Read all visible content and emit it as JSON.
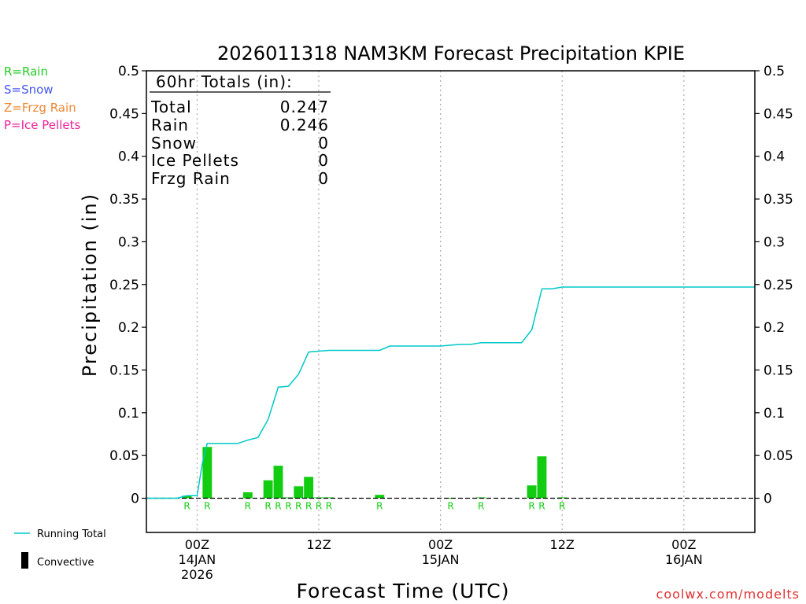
{
  "chart_data": {
    "type": "bar",
    "title": "2026011318 NAM3KM Forecast Precipitation KPIE",
    "xlabel": "Forecast Time (UTC)",
    "ylabel": "Precipitation (in)",
    "ylim": [
      -0.04,
      0.5
    ],
    "y_ticks": [
      0,
      0.05,
      0.1,
      0.15,
      0.2,
      0.25,
      0.3,
      0.35,
      0.4,
      0.45,
      0.5
    ],
    "y_tick_labels": [
      "0",
      "0.05",
      "0.1",
      "0.15",
      "0.2",
      "0.25",
      "0.3",
      "0.35",
      "0.4",
      "0.45",
      "0.5"
    ],
    "xlim_hours": [
      -5,
      55
    ],
    "x_ticks": [
      {
        "hour": 0,
        "labels": [
          "00Z",
          "14JAN",
          "2026"
        ]
      },
      {
        "hour": 12,
        "labels": [
          "12Z"
        ]
      },
      {
        "hour": 24,
        "labels": [
          "00Z",
          "15JAN"
        ]
      },
      {
        "hour": 36,
        "labels": [
          "12Z"
        ]
      },
      {
        "hour": 48,
        "labels": [
          "00Z",
          "16JAN"
        ]
      }
    ],
    "legend_types": [
      {
        "label": "R=Rain",
        "color": "#22cc22"
      },
      {
        "label": "S=Snow",
        "color": "#4455ee"
      },
      {
        "label": "Z=Frzg Rain",
        "color": "#ee8833"
      },
      {
        "label": "P=Ice Pellets",
        "color": "#ee2299"
      }
    ],
    "legend_series": [
      {
        "label": "Running Total",
        "color": "#00c8c8"
      },
      {
        "label": "Convective",
        "color": "#000000"
      }
    ],
    "totals": {
      "header": "60hr Totals (in):",
      "rows": [
        {
          "label": "Total",
          "value": "0.247"
        },
        {
          "label": "Rain",
          "value": "0.246"
        },
        {
          "label": "Snow",
          "value": "0"
        },
        {
          "label": "Ice Pellets",
          "value": "0"
        },
        {
          "label": "Frzg Rain",
          "value": "0"
        }
      ]
    },
    "bars": [
      {
        "hour": -1,
        "value": 0.003,
        "type": "R"
      },
      {
        "hour": 1,
        "value": 0.06,
        "type": "R"
      },
      {
        "hour": 5,
        "value": 0.007,
        "type": "R"
      },
      {
        "hour": 7,
        "value": 0.021,
        "type": "R"
      },
      {
        "hour": 8,
        "value": 0.038,
        "type": "R"
      },
      {
        "hour": 9,
        "value": 0.001,
        "type": "R"
      },
      {
        "hour": 10,
        "value": 0.014,
        "type": "R"
      },
      {
        "hour": 11,
        "value": 0.025,
        "type": "R"
      },
      {
        "hour": 12,
        "value": 0.001,
        "type": "R"
      },
      {
        "hour": 13,
        "value": 0.001,
        "type": "R"
      },
      {
        "hour": 18,
        "value": 0.004,
        "type": "R"
      },
      {
        "hour": 25,
        "value": 0.0005,
        "type": "R"
      },
      {
        "hour": 28,
        "value": 0.001,
        "type": "R"
      },
      {
        "hour": 33,
        "value": 0.015,
        "type": "R"
      },
      {
        "hour": 34,
        "value": 0.049,
        "type": "R"
      },
      {
        "hour": 36,
        "value": 0.001,
        "type": "R"
      }
    ],
    "running_total": {
      "name": "Running Total",
      "x": [
        -5,
        -2,
        -1,
        0,
        0.5,
        1,
        4,
        5,
        6,
        7,
        8,
        9,
        10,
        11,
        12,
        13,
        18,
        19,
        24,
        25,
        26,
        27,
        28,
        32,
        33,
        34,
        35,
        36,
        55
      ],
      "y": [
        0,
        0,
        0.003,
        0.003,
        0.04,
        0.064,
        0.064,
        0.068,
        0.071,
        0.092,
        0.13,
        0.131,
        0.145,
        0.171,
        0.172,
        0.173,
        0.173,
        0.178,
        0.178,
        0.179,
        0.18,
        0.18,
        0.182,
        0.182,
        0.197,
        0.245,
        0.245,
        0.247,
        0.247
      ]
    },
    "credit": "coolwx.com/modelts"
  },
  "colors": {
    "rain_bar": "#11cc11",
    "running_total": "#00c8c8",
    "axis": "#000000",
    "gridline": "#aaaaaa",
    "credit": "#e03030"
  }
}
